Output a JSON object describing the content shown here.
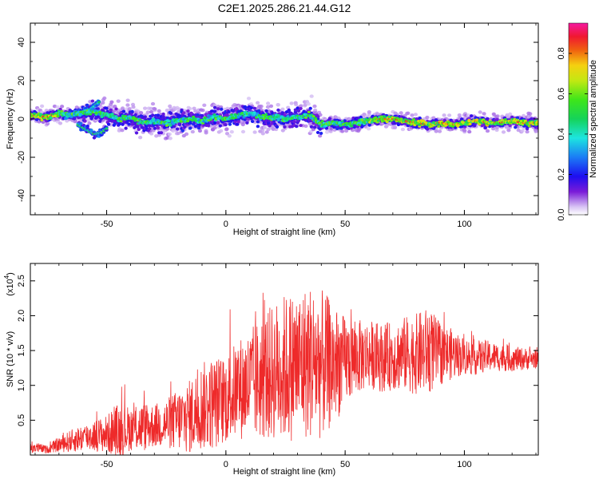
{
  "title": "C2E1.2025.286.21.44.G12",
  "colors": {
    "snr_line": "#ee2a2a",
    "frame": "#000000",
    "background": "#ffffff"
  },
  "chart_data": [
    {
      "type": "heatmap",
      "xlabel": "Height of straight line (km)",
      "ylabel": "Frequency (Hz)",
      "xlim": [
        -82,
        131
      ],
      "ylim": [
        -50,
        50
      ],
      "xticks": [
        -50,
        0,
        50,
        100
      ],
      "xtick_labels": [
        "-50",
        "0",
        "50",
        "100"
      ],
      "yticks": [
        -40,
        -20,
        0,
        20,
        40
      ],
      "ytick_labels": [
        "-40",
        "-20",
        "0",
        "20",
        "40"
      ],
      "colorbar": {
        "label": "Normalized spectral amplitude",
        "range": [
          0.0,
          0.95
        ],
        "ticks": [
          0.0,
          0.2,
          0.4,
          0.6,
          0.8
        ],
        "tick_labels": [
          "0.0",
          "0.2",
          "0.4",
          "0.6",
          "0.8"
        ],
        "colormap": "rainbow (purple to magenta)"
      },
      "ridge": {
        "description": "dominant frequency track vs height",
        "x": [
          -82,
          -75,
          -70,
          -65,
          -60,
          -55,
          -50,
          -45,
          -40,
          -35,
          -30,
          -25,
          -20,
          -15,
          -10,
          -5,
          0,
          5,
          10,
          15,
          20,
          25,
          30,
          35,
          40,
          45,
          50,
          55,
          60,
          65,
          70,
          75,
          80,
          85,
          90,
          95,
          100,
          105,
          110,
          115,
          120,
          125,
          131
        ],
        "y": [
          2,
          1,
          3,
          2,
          3,
          4,
          2,
          0,
          1,
          -2,
          -1,
          -2,
          -1,
          0,
          -1,
          1,
          0,
          2,
          3,
          1,
          1,
          0,
          1,
          2,
          -3,
          -2,
          -3,
          -2,
          -1,
          0,
          0,
          -1,
          -2,
          -3,
          -2,
          -3,
          -2,
          -1,
          -2,
          -2,
          -1,
          -2,
          -2
        ],
        "secondary_branch": {
          "x": [
            -68,
            -64,
            -60,
            -57,
            -55,
            -53
          ],
          "y": [
            2,
            3,
            4,
            5,
            7,
            9
          ]
        },
        "lower_branch": {
          "x": [
            -62,
            -58,
            -55,
            -52,
            -50
          ],
          "y": [
            -3,
            -6,
            -8,
            -7,
            -5
          ]
        }
      }
    },
    {
      "type": "line",
      "series_color": "#ee2a2a",
      "xlabel": "Height of straight line (km)",
      "ylabel": "SNR (10 * v/v)",
      "y_multiplier_label": "(x10",
      "y_multiplier_exp": "4",
      "y_multiplier_close": ")",
      "xlim": [
        -82,
        131
      ],
      "ylim": [
        0,
        2.75
      ],
      "xticks": [
        -50,
        0,
        50,
        100
      ],
      "xtick_labels": [
        "-50",
        "0",
        "50",
        "100"
      ],
      "yticks": [
        0.5,
        1.0,
        1.5,
        2.0,
        2.5
      ],
      "ytick_labels": [
        "0.5",
        "1.0",
        "1.5",
        "2.0",
        "2.5"
      ],
      "envelope": {
        "x": [
          -82,
          -75,
          -70,
          -65,
          -60,
          -55,
          -50,
          -45,
          -40,
          -35,
          -30,
          -25,
          -20,
          -15,
          -10,
          -5,
          0,
          5,
          10,
          15,
          20,
          25,
          30,
          35,
          40,
          45,
          50,
          55,
          60,
          65,
          70,
          75,
          80,
          85,
          90,
          95,
          100,
          105,
          110,
          115,
          120,
          125,
          131
        ],
        "mean": [
          0.12,
          0.08,
          0.15,
          0.2,
          0.25,
          0.28,
          0.3,
          0.35,
          0.38,
          0.4,
          0.42,
          0.45,
          0.5,
          0.55,
          0.7,
          0.75,
          0.8,
          0.95,
          1.0,
          1.1,
          1.2,
          1.25,
          1.3,
          1.35,
          1.3,
          1.3,
          1.35,
          1.4,
          1.45,
          1.4,
          1.42,
          1.45,
          1.45,
          1.5,
          1.45,
          1.45,
          1.42,
          1.4,
          1.42,
          1.4,
          1.38,
          1.38,
          1.38
        ],
        "spread": [
          0.1,
          0.06,
          0.12,
          0.18,
          0.22,
          0.25,
          0.3,
          0.45,
          0.35,
          0.4,
          0.35,
          0.4,
          0.5,
          0.6,
          0.7,
          0.75,
          0.7,
          0.8,
          0.9,
          1.0,
          1.1,
          1.2,
          1.2,
          1.25,
          1.2,
          1.0,
          0.7,
          0.6,
          0.55,
          0.55,
          0.55,
          0.6,
          0.65,
          0.7,
          0.5,
          0.4,
          0.3,
          0.28,
          0.25,
          0.22,
          0.2,
          0.18,
          0.15
        ]
      }
    }
  ]
}
